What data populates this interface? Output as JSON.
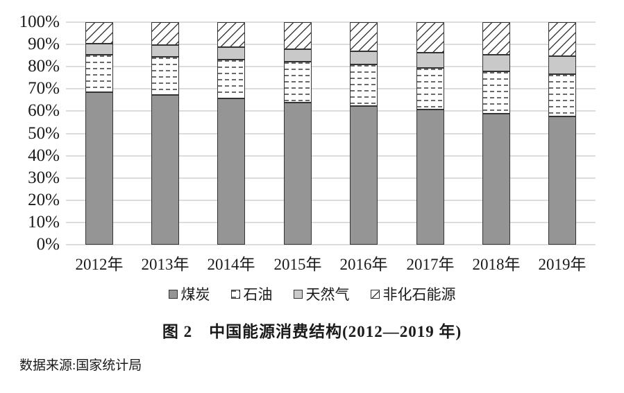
{
  "figure": {
    "title": "图 2　中国能源消费结构(2012—2019 年)",
    "source": "数据来源:国家统计局"
  },
  "colors": {
    "coal_fill": "#959595",
    "natural_gas_fill": "#c9c9c9",
    "pattern_ink": "#3d3d3d",
    "segment_border": "#333333",
    "gridline": "#dcdcdc",
    "background": "#ffffff"
  },
  "chart_data": {
    "type": "bar",
    "stacked": true,
    "title": "图 2　中国能源消费结构(2012—2019 年)",
    "xlabel": "",
    "ylabel": "",
    "ylim": [
      0,
      100
    ],
    "ytick_step": 10,
    "ytick_labels_top_to_bottom": [
      "100%",
      "90%",
      "80%",
      "70%",
      "60%",
      "50%",
      "40%",
      "30%",
      "20%",
      "10%",
      "0%"
    ],
    "grid": "horizontal",
    "legend_position": "bottom",
    "categories": [
      "2012年",
      "2013年",
      "2014年",
      "2015年",
      "2016年",
      "2017年",
      "2018年",
      "2019年"
    ],
    "series": [
      {
        "name": "煤炭",
        "pattern": "solid-dark",
        "values": [
          68.5,
          67.4,
          65.8,
          63.8,
          62.2,
          60.6,
          59.0,
          57.7
        ]
      },
      {
        "name": "石油",
        "pattern": "dash-dots",
        "values": [
          17.0,
          17.1,
          17.3,
          18.4,
          18.7,
          18.9,
          18.9,
          18.9
        ]
      },
      {
        "name": "天然气",
        "pattern": "solid-light",
        "values": [
          4.8,
          5.3,
          5.6,
          5.8,
          6.1,
          6.9,
          7.6,
          8.1
        ]
      },
      {
        "name": "非化石能源",
        "pattern": "diagonal-hatch",
        "values": [
          9.7,
          10.2,
          11.3,
          12.0,
          13.0,
          13.6,
          14.5,
          15.3
        ]
      }
    ]
  }
}
